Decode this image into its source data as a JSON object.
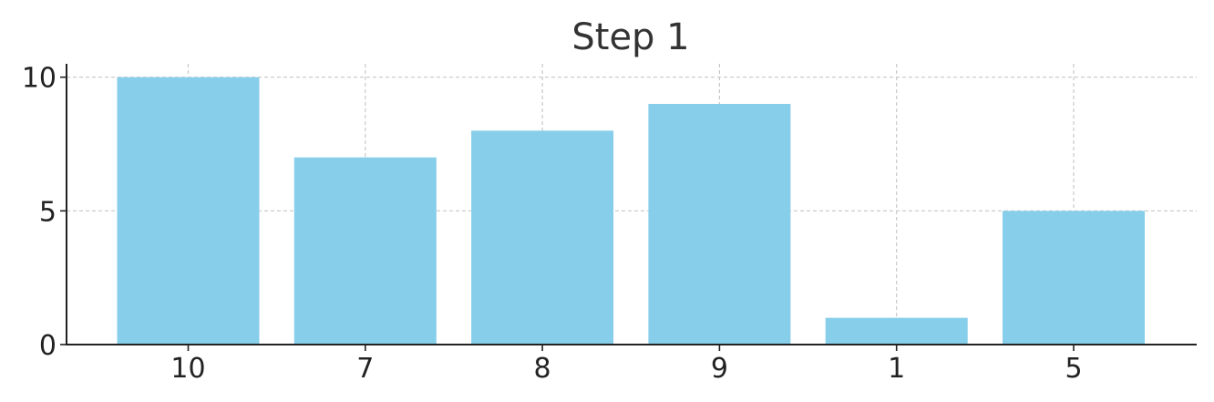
{
  "chart_data": {
    "type": "bar",
    "title": "Step 1",
    "categories": [
      "10",
      "7",
      "8",
      "9",
      "1",
      "5"
    ],
    "values": [
      10,
      7,
      8,
      9,
      1,
      5
    ],
    "xlabel": "",
    "ylabel": "",
    "ylim": [
      0,
      10.5
    ],
    "yticks": [
      0,
      5,
      10
    ],
    "bar_color": "#87CEEB",
    "grid": true,
    "legend": "none"
  }
}
